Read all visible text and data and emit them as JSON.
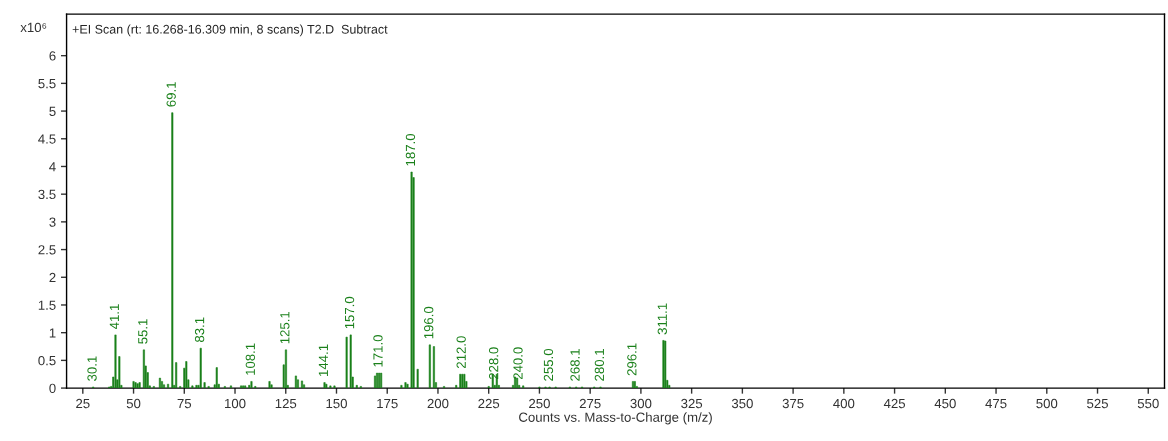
{
  "chart_data": {
    "type": "bar",
    "title": "+EI Scan (rt: 16.268-16.309 min, 8 scans) T2.D  Subtract",
    "xlabel": "Counts vs. Mass-to-Charge (m/z)",
    "ylabel": "x10⁶",
    "x": [
      30.1,
      38,
      39,
      40,
      41.1,
      42,
      43,
      44,
      50,
      51,
      52,
      53,
      55.1,
      56,
      57,
      58,
      60,
      63,
      64,
      65,
      67,
      69.1,
      70,
      71,
      73,
      75,
      76,
      77,
      79,
      81,
      82,
      83.1,
      85,
      87,
      90,
      91,
      92,
      95,
      98,
      103,
      104,
      105,
      107,
      108.1,
      110,
      117,
      118,
      124,
      125.1,
      126,
      130,
      131,
      133,
      134,
      144.1,
      145,
      147,
      149,
      155,
      157.0,
      158,
      160,
      162,
      169,
      170,
      171.0,
      172,
      182,
      184,
      185,
      187.0,
      188,
      190,
      196.0,
      198,
      199,
      203,
      209,
      211,
      212.0,
      213,
      214,
      225,
      227,
      228.0,
      229,
      230,
      237,
      238,
      239,
      240.0,
      242,
      250,
      253,
      255.0,
      258,
      265,
      268.1,
      271,
      277,
      280.1,
      296.1,
      297,
      298,
      311.1,
      312,
      313,
      314
    ],
    "values": [
      0.02,
      0.02,
      0.03,
      0.2,
      0.96,
      0.15,
      0.57,
      0.05,
      0.12,
      0.1,
      0.08,
      0.1,
      0.69,
      0.4,
      0.28,
      0.04,
      0.03,
      0.18,
      0.12,
      0.06,
      0.07,
      4.97,
      0.05,
      0.46,
      0.03,
      0.36,
      0.48,
      0.15,
      0.04,
      0.05,
      0.05,
      0.72,
      0.1,
      0.03,
      0.06,
      0.37,
      0.07,
      0.03,
      0.04,
      0.04,
      0.04,
      0.04,
      0.05,
      0.12,
      0.03,
      0.12,
      0.06,
      0.42,
      0.69,
      0.05,
      0.22,
      0.15,
      0.13,
      0.06,
      0.1,
      0.07,
      0.04,
      0.04,
      0.92,
      0.96,
      0.2,
      0.05,
      0.03,
      0.22,
      0.27,
      0.27,
      0.27,
      0.05,
      0.1,
      0.07,
      3.9,
      3.8,
      0.34,
      0.78,
      0.75,
      0.1,
      0.03,
      0.05,
      0.25,
      0.25,
      0.25,
      0.12,
      0.03,
      0.25,
      0.05,
      0.25,
      0.05,
      0.05,
      0.2,
      0.18,
      0.05,
      0.04,
      0.02,
      0.02,
      0.02,
      0.02,
      0.02,
      0.02,
      0.02,
      0.02,
      0.02,
      0.12,
      0.12,
      0.03,
      0.86,
      0.85,
      0.14,
      0.05
    ],
    "annotations": [
      {
        "text": "30.1",
        "x": 30.1,
        "y": 0.02
      },
      {
        "text": "41.1",
        "x": 41.1,
        "y": 0.96
      },
      {
        "text": "55.1",
        "x": 55.1,
        "y": 0.69
      },
      {
        "text": "69.1",
        "x": 69.1,
        "y": 4.97
      },
      {
        "text": "83.1",
        "x": 83.1,
        "y": 0.72
      },
      {
        "text": "108.1",
        "x": 108.1,
        "y": 0.12
      },
      {
        "text": "125.1",
        "x": 125.1,
        "y": 0.69
      },
      {
        "text": "144.1",
        "x": 144.1,
        "y": 0.1
      },
      {
        "text": "157.0",
        "x": 157.0,
        "y": 0.96
      },
      {
        "text": "171.0",
        "x": 171.0,
        "y": 0.27
      },
      {
        "text": "187.0",
        "x": 187.0,
        "y": 3.9
      },
      {
        "text": "196.0",
        "x": 196.0,
        "y": 0.78
      },
      {
        "text": "212.0",
        "x": 212.0,
        "y": 0.25
      },
      {
        "text": "228.0",
        "x": 228.0,
        "y": 0.05
      },
      {
        "text": "240.0",
        "x": 240.0,
        "y": 0.05
      },
      {
        "text": "255.0",
        "x": 255.0,
        "y": 0.02
      },
      {
        "text": "268.1",
        "x": 268.1,
        "y": 0.02
      },
      {
        "text": "280.1",
        "x": 280.1,
        "y": 0.02
      },
      {
        "text": "296.1",
        "x": 296.1,
        "y": 0.12
      },
      {
        "text": "311.1",
        "x": 311.1,
        "y": 0.86
      }
    ],
    "color": "#1a801a",
    "xlim": [
      17,
      558
    ],
    "xticks": [
      25,
      50,
      75,
      100,
      125,
      150,
      175,
      200,
      225,
      250,
      275,
      300,
      325,
      350,
      375,
      400,
      425,
      450,
      475,
      500,
      525,
      550
    ],
    "ylim": [
      0,
      6.75
    ],
    "yticks": [
      0,
      0.5,
      1,
      1.5,
      2,
      2.5,
      3,
      3.5,
      4,
      4.5,
      5,
      5.5,
      6
    ],
    "grid": false
  }
}
